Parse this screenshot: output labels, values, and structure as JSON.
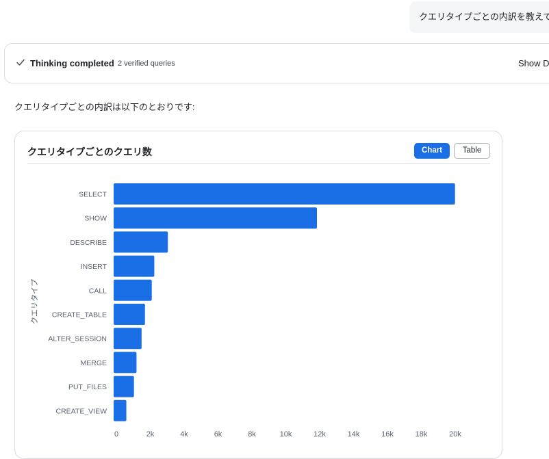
{
  "user_message": {
    "text": "クエリタイプごとの内訳を教えて"
  },
  "thinking_panel": {
    "title": "Thinking completed",
    "subtitle": "2 verified queries",
    "show_details_label": "Show D"
  },
  "answer_text": "クエリタイプごとの内訳は以下のとおりです:",
  "chart_card": {
    "title": "クエリタイプごとのクエリ数",
    "chart_button_label": "Chart",
    "table_button_label": "Table",
    "accent_color": "#1a6ee6"
  },
  "chart_data": {
    "type": "bar",
    "orientation": "horizontal",
    "ylabel": "クエリタイプ",
    "xlabel": "",
    "categories": [
      "SELECT",
      "SHOW",
      "DESCRIBE",
      "INSERT",
      "CALL",
      "CREATE_TABLE",
      "ALTER_SESSION",
      "MERGE",
      "PUT_FILES",
      "CREATE_VIEW"
    ],
    "values": [
      20150,
      12000,
      3200,
      2400,
      2250,
      1850,
      1650,
      1350,
      1200,
      750
    ],
    "xlim": [
      0,
      20000
    ],
    "xticks": [
      "0",
      "2k",
      "4k",
      "6k",
      "8k",
      "10k",
      "12k",
      "14k",
      "16k",
      "18k",
      "20k"
    ],
    "bar_color": "#1a6ee6",
    "grid": false
  }
}
